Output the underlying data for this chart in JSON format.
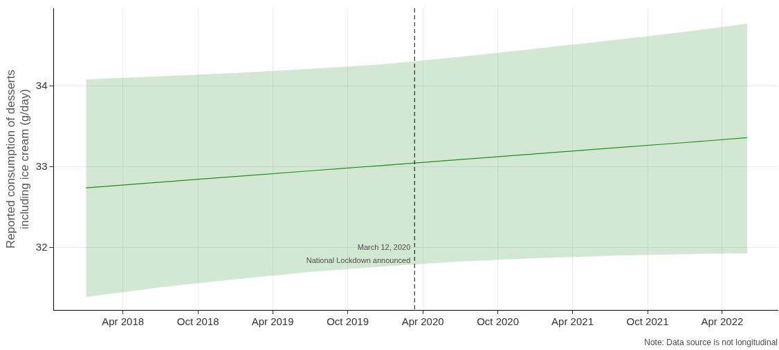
{
  "chart_data": {
    "type": "line",
    "ylabel": "Reported consumption of desserts including ice cream (g/day)",
    "x": [
      "2018-01-01",
      "2018-07-01",
      "2019-01-01",
      "2019-07-01",
      "2020-01-01",
      "2020-07-01",
      "2021-01-01",
      "2021-07-01",
      "2022-01-01",
      "2022-06-01"
    ],
    "series": [
      {
        "color": "#228b22",
        "values": [
          32.74,
          32.81,
          32.88,
          32.95,
          33.02,
          33.09,
          33.16,
          33.23,
          33.3,
          33.36
        ],
        "lower": [
          31.39,
          31.51,
          31.61,
          31.7,
          31.77,
          31.83,
          31.87,
          31.9,
          31.92,
          31.93
        ],
        "upper": [
          34.08,
          34.12,
          34.16,
          34.21,
          34.27,
          34.36,
          34.46,
          34.56,
          34.67,
          34.77
        ]
      }
    ],
    "xlim": [
      "2017-10-14",
      "2022-08-14"
    ],
    "xticks": [
      {
        "value": "2018-04-01",
        "label": "Apr 2018"
      },
      {
        "value": "2018-10-01",
        "label": "Oct 2018"
      },
      {
        "value": "2019-04-01",
        "label": "Apr 2019"
      },
      {
        "value": "2019-10-01",
        "label": "Oct 2019"
      },
      {
        "value": "2020-04-01",
        "label": "Apr 2020"
      },
      {
        "value": "2020-10-01",
        "label": "Oct 2020"
      },
      {
        "value": "2021-04-01",
        "label": "Apr 2021"
      },
      {
        "value": "2021-10-01",
        "label": "Oct 2021"
      },
      {
        "value": "2022-04-01",
        "label": "Apr 2022"
      }
    ],
    "ylim": [
      31.23,
      34.96
    ],
    "yticks": [
      32,
      33,
      34
    ],
    "grid": true,
    "legend": false,
    "marker": "none",
    "line_style": "solid",
    "ref_lines": [
      {
        "axis": "x",
        "value": "2020-03-12",
        "line_style": "dashed",
        "color": "#000000"
      }
    ],
    "annotations": [
      {
        "text": "March 12, 2020",
        "x": "2020-03-12",
        "y": 32.0
      },
      {
        "text": "National Lockdown announced",
        "x": "2020-03-12",
        "y": 31.84
      },
      "Note: Data source is not longitudinal"
    ]
  }
}
